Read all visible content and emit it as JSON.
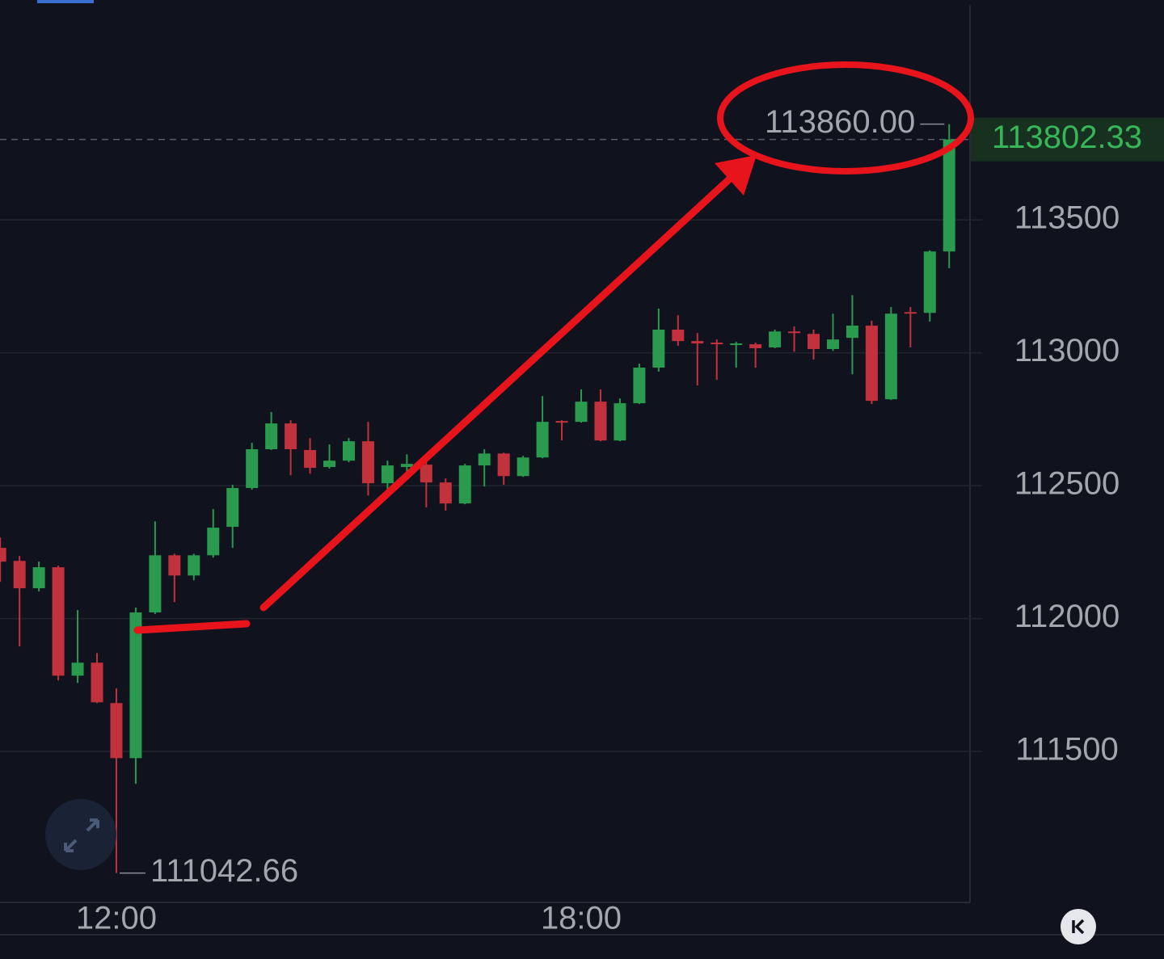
{
  "chart_data": {
    "type": "candlestick",
    "categories": [
      null,
      null,
      null,
      null,
      null,
      null,
      "12:00",
      null,
      null,
      null,
      null,
      null,
      null,
      null,
      null,
      null,
      null,
      null,
      null,
      null,
      null,
      null,
      null,
      null,
      null,
      null,
      null,
      null,
      null,
      null,
      "18:00",
      null,
      null,
      null,
      null,
      null,
      null,
      null,
      null,
      null,
      null,
      null,
      null,
      null,
      null,
      null,
      null,
      null,
      null,
      null
    ],
    "open": [
      112266,
      112217,
      112114,
      112193,
      111785,
      111834,
      111682,
      111475,
      112023,
      112238,
      112162,
      112238,
      112345,
      112491,
      112637,
      112734,
      112634,
      112570,
      112594,
      112667,
      112509,
      112570,
      112579,
      112512,
      112433,
      112576,
      112621,
      112536,
      112606,
      112743,
      112740,
      112816,
      112670,
      112810,
      112944,
      113087,
      113044,
      113038,
      113029,
      113032,
      113020,
      113080,
      113071,
      113014,
      113056,
      113102,
      112825,
      113153,
      113150,
      113381
    ],
    "high": [
      112305,
      112235,
      112214,
      112199,
      112032,
      111870,
      111737,
      112041,
      112366,
      112244,
      112244,
      112412,
      112503,
      112661,
      112777,
      112746,
      112679,
      112655,
      112679,
      112740,
      112594,
      112618,
      112594,
      112527,
      112582,
      112637,
      112624,
      112612,
      112837,
      112746,
      112862,
      112862,
      112828,
      112959,
      113166,
      113141,
      113074,
      113050,
      113041,
      113038,
      113087,
      113099,
      113087,
      113147,
      113217,
      113120,
      113172,
      113172,
      113385,
      113860
    ],
    "low": [
      112138,
      111895,
      112102,
      111767,
      111758,
      111682,
      111042.66,
      111378,
      112017,
      112062,
      112144,
      112229,
      112266,
      112485,
      112634,
      112539,
      112545,
      112564,
      112588,
      112463,
      112485,
      112533,
      112418,
      112406,
      112430,
      112497,
      112503,
      112533,
      112603,
      112670,
      112737,
      112667,
      112667,
      112807,
      112929,
      113026,
      112877,
      112898,
      112944,
      112944,
      113017,
      113004,
      112974,
      113007,
      112919,
      112807,
      112822,
      113020,
      113117,
      113318
    ],
    "close": [
      112214,
      112114,
      112193,
      111785,
      111834,
      111685,
      111475,
      112023,
      112238,
      112162,
      112238,
      112342,
      112491,
      112637,
      112734,
      112637,
      112567,
      112594,
      112667,
      112509,
      112576,
      112582,
      112512,
      112433,
      112576,
      112621,
      112536,
      112606,
      112740,
      112737,
      112816,
      112670,
      112810,
      112944,
      113087,
      113044,
      113035,
      113032,
      113035,
      113017,
      113080,
      113074,
      113014,
      113050,
      113102,
      112819,
      113147,
      113147,
      113381,
      113802.33
    ],
    "up_color": "#2a9a4e",
    "down_color": "#c2323c",
    "ylim": [
      110932,
      114327
    ],
    "yticks": [
      111500,
      112000,
      112500,
      113000,
      113500
    ],
    "grid": true,
    "high_label": {
      "value": 113860,
      "label": "113860.00"
    },
    "low_label": 111042.66,
    "last_price": 113802.33
  }
}
